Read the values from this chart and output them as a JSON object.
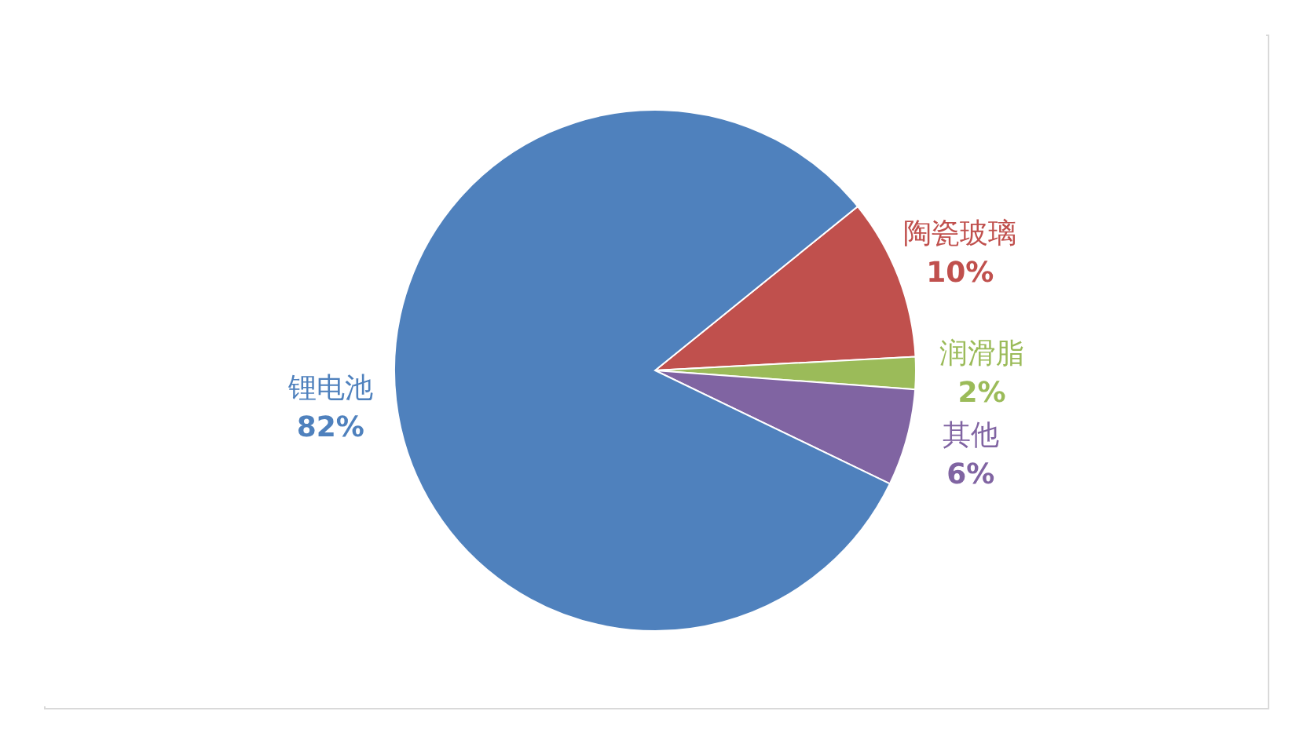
{
  "chart_data": {
    "type": "pie",
    "categories": [
      "陶瓷玻璃",
      "润滑脂",
      "其他",
      "锂电池"
    ],
    "values": [
      10,
      2,
      6,
      82
    ],
    "value_labels": [
      "10%",
      "2%",
      "6%",
      "82%"
    ],
    "colors": [
      "#c0504d",
      "#9bbb59",
      "#8064a2",
      "#4f81bd"
    ]
  }
}
